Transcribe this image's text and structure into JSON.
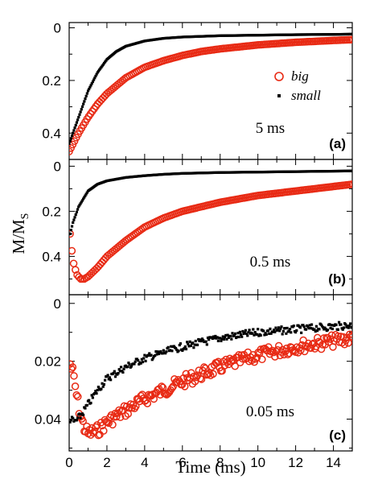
{
  "figure": {
    "xlabel": "Time (ms)",
    "ylabel_main": "M/M",
    "ylabel_sub": "S"
  },
  "colors": {
    "big": "#e82a14",
    "small": "#000000"
  },
  "legend": [
    {
      "label": "big",
      "marker": "open-circle",
      "color": "#e82a14"
    },
    {
      "label": "small",
      "marker": "dot",
      "color": "#000000"
    }
  ],
  "chart_data": [
    {
      "type": "scatter",
      "panel": "(a)",
      "annotation": "5 ms",
      "xlim": [
        0,
        15
      ],
      "ylim": [
        0.5,
        -0.02
      ],
      "xticks": [
        0,
        2,
        4,
        6,
        8,
        10,
        12,
        14
      ],
      "yticks": [
        0,
        0.2,
        0.4
      ],
      "ytick_labels": [
        "0",
        "0.2",
        "0.4"
      ],
      "series": [
        {
          "name": "big",
          "x": [
            0,
            0.5,
            1,
            1.5,
            2,
            3,
            4,
            5,
            6,
            7,
            8,
            10,
            12,
            14,
            15
          ],
          "y": [
            0.47,
            0.4,
            0.34,
            0.29,
            0.25,
            0.19,
            0.15,
            0.125,
            0.105,
            0.09,
            0.08,
            0.065,
            0.055,
            0.048,
            0.045
          ]
        },
        {
          "name": "small",
          "x": [
            0,
            0.5,
            1,
            1.5,
            2,
            2.5,
            3,
            4,
            5,
            6,
            8,
            10,
            12,
            14,
            15
          ],
          "y": [
            0.44,
            0.34,
            0.24,
            0.17,
            0.12,
            0.09,
            0.07,
            0.05,
            0.04,
            0.035,
            0.03,
            0.028,
            0.026,
            0.025,
            0.024
          ]
        }
      ]
    },
    {
      "type": "scatter",
      "panel": "(b)",
      "annotation": "0.5 ms",
      "xlim": [
        0,
        15
      ],
      "ylim": [
        0.57,
        -0.03
      ],
      "xticks": [
        0,
        2,
        4,
        6,
        8,
        10,
        12,
        14
      ],
      "yticks": [
        0,
        0.2,
        0.4
      ],
      "ytick_labels": [
        "0",
        "0.2",
        "0.4"
      ],
      "series": [
        {
          "name": "big",
          "x": [
            0.05,
            0.2,
            0.4,
            0.6,
            0.8,
            1,
            1.5,
            2,
            3,
            4,
            5,
            6,
            8,
            10,
            12,
            14,
            15
          ],
          "y": [
            0.3,
            0.42,
            0.48,
            0.5,
            0.5,
            0.49,
            0.45,
            0.4,
            0.33,
            0.27,
            0.23,
            0.2,
            0.16,
            0.13,
            0.11,
            0.09,
            0.08
          ]
        },
        {
          "name": "small",
          "x": [
            0.05,
            0.2,
            0.5,
            1,
            1.5,
            2,
            3,
            4,
            5,
            6,
            8,
            10,
            12,
            14,
            15
          ],
          "y": [
            0.3,
            0.25,
            0.18,
            0.11,
            0.08,
            0.065,
            0.05,
            0.042,
            0.036,
            0.032,
            0.028,
            0.026,
            0.024,
            0.022,
            0.021
          ]
        }
      ]
    },
    {
      "type": "scatter",
      "panel": "(c)",
      "annotation": "0.05 ms",
      "xlim": [
        0,
        15
      ],
      "ylim": [
        0.051,
        -0.003
      ],
      "xticks": [
        0,
        2,
        4,
        6,
        8,
        10,
        12,
        14
      ],
      "xtick_labels": [
        "0",
        "2",
        "4",
        "6",
        "8",
        "10",
        "12",
        "14"
      ],
      "yticks": [
        0,
        0.02,
        0.04
      ],
      "ytick_labels": [
        "0",
        "0.02",
        "0.04"
      ],
      "series": [
        {
          "name": "big",
          "x": [
            0.05,
            0.2,
            0.4,
            0.6,
            0.8,
            1,
            1.5,
            2,
            3,
            4,
            5,
            6,
            8,
            10,
            12,
            14,
            15
          ],
          "y": [
            0.021,
            0.024,
            0.032,
            0.039,
            0.043,
            0.045,
            0.044,
            0.041,
            0.037,
            0.033,
            0.03,
            0.027,
            0.022,
            0.018,
            0.015,
            0.013,
            0.012
          ]
        },
        {
          "name": "small",
          "x": [
            0.05,
            0.3,
            0.6,
            1,
            1.5,
            2,
            3,
            4,
            5,
            6,
            8,
            10,
            12,
            14,
            15
          ],
          "y": [
            0.04,
            0.041,
            0.039,
            0.035,
            0.03,
            0.026,
            0.022,
            0.019,
            0.017,
            0.015,
            0.012,
            0.01,
            0.009,
            0.008,
            0.0075
          ]
        }
      ]
    }
  ]
}
